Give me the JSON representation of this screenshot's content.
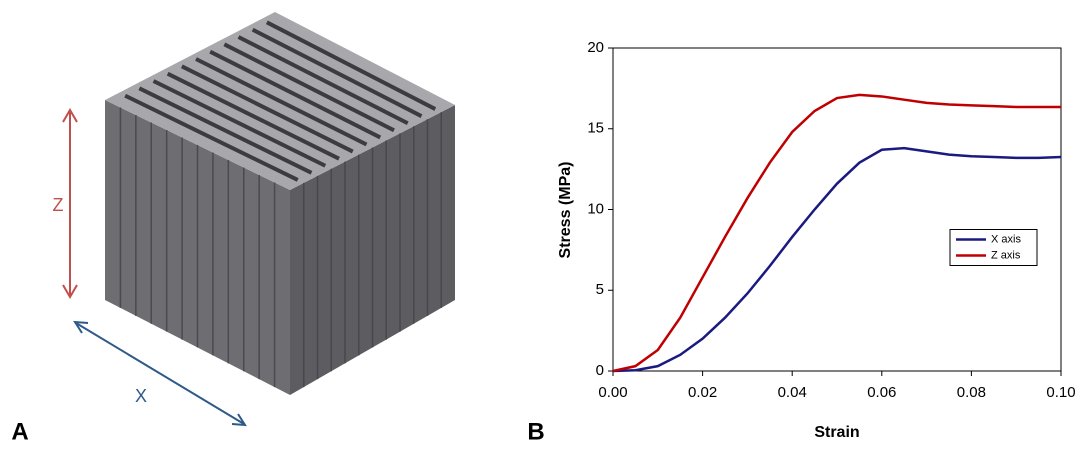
{
  "panel_labels": {
    "a": "A",
    "b": "B"
  },
  "cube_axis_labels": {
    "z": "Z",
    "x": "X"
  },
  "chart_data": {
    "type": "line",
    "x_label": "Strain",
    "y_label": "Stress (MPa)",
    "x": [
      0,
      0.005,
      0.01,
      0.015,
      0.02,
      0.025,
      0.03,
      0.035,
      0.04,
      0.045,
      0.05,
      0.055,
      0.06,
      0.065,
      0.07,
      0.075,
      0.08,
      0.085,
      0.09,
      0.095,
      0.1
    ],
    "series": [
      {
        "name": "X axis",
        "color": "#1a1a80",
        "values": [
          0,
          0.05,
          0.3,
          1.0,
          2.0,
          3.3,
          4.8,
          6.5,
          8.3,
          10.0,
          11.6,
          12.9,
          13.7,
          13.8,
          13.6,
          13.4,
          13.3,
          13.25,
          13.2,
          13.2,
          13.25
        ]
      },
      {
        "name": "Z axis",
        "color": "#c00000",
        "values": [
          0,
          0.3,
          1.3,
          3.3,
          5.8,
          8.3,
          10.7,
          12.9,
          14.8,
          16.1,
          16.9,
          17.1,
          17.0,
          16.8,
          16.6,
          16.5,
          16.45,
          16.4,
          16.35,
          16.35,
          16.35
        ]
      }
    ],
    "xlim": [
      0,
      0.1
    ],
    "xticks": [
      {
        "value": 0,
        "label": "0.00"
      },
      {
        "value": 0.02,
        "label": "0.02"
      },
      {
        "value": 0.04,
        "label": "0.04"
      },
      {
        "value": 0.06,
        "label": "0.06"
      },
      {
        "value": 0.08,
        "label": "0.08"
      },
      {
        "value": 0.1,
        "label": "0.10"
      }
    ],
    "ylim": [
      0,
      20
    ],
    "yticks": [
      0,
      5,
      10,
      15,
      20
    ],
    "grid": false,
    "legend": "center right"
  }
}
